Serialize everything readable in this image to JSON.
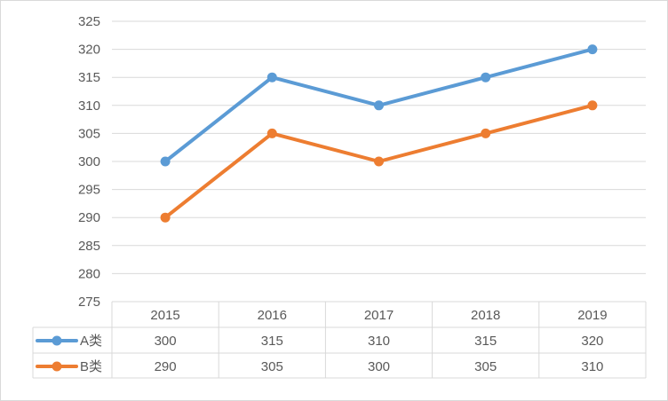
{
  "chart_data": {
    "type": "line",
    "title": "",
    "xlabel": "",
    "ylabel": "",
    "categories": [
      "2015",
      "2016",
      "2017",
      "2018",
      "2019"
    ],
    "ylim": [
      275,
      325
    ],
    "yticks": [
      275,
      280,
      285,
      290,
      295,
      300,
      305,
      310,
      315,
      320,
      325
    ],
    "grid": true,
    "legend": "data-table",
    "series": [
      {
        "name": "A类",
        "color": "#5b9bd5",
        "values": [
          300,
          315,
          310,
          315,
          320
        ]
      },
      {
        "name": "B类",
        "color": "#ed7d31",
        "values": [
          290,
          305,
          300,
          305,
          310
        ]
      }
    ]
  }
}
